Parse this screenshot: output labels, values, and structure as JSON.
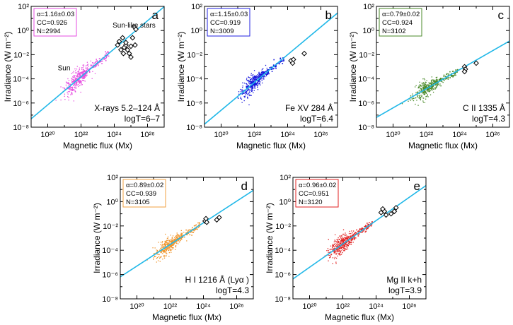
{
  "chart_data": [
    {
      "type": "scatter",
      "panel": "a",
      "xlabel": "Magnetic flux (Mx)",
      "ylabel": "Irradiance (W m⁻²)",
      "xscale": "log",
      "yscale": "log",
      "xlim_exp": [
        19,
        27
      ],
      "ylim_exp": [
        -8,
        2
      ],
      "xticks": [
        "10²⁰",
        "10²²",
        "10²⁴",
        "10²⁶"
      ],
      "yticks": [
        "10⁻⁸",
        "10⁻⁶",
        "10⁻⁴",
        "10⁻²",
        "10⁰",
        "10²"
      ],
      "stats": [
        "α=1.16±0.03",
        "CC=0.926",
        "N=2994"
      ],
      "box_color": "#e64ee0",
      "dot_color": "#e64ee0",
      "fit_color": "#21b8e8",
      "fit": {
        "slope": 1.16,
        "intercept": -29.35
      },
      "cloud": {
        "center_logx": 21.8,
        "center_logy": -3.9,
        "n": 340,
        "sx": 0.7,
        "sy": 0.8
      },
      "stars": [
        [
          24.3,
          -0.9
        ],
        [
          24.5,
          -0.6
        ],
        [
          24.6,
          -1.4
        ],
        [
          24.4,
          -1.6
        ],
        [
          24.7,
          -1.2
        ],
        [
          24.8,
          -1.6
        ],
        [
          25.0,
          -1.3
        ],
        [
          25.1,
          -0.6
        ],
        [
          25.2,
          0.3
        ],
        [
          25.3,
          0.1
        ],
        [
          24.9,
          -1.9
        ],
        [
          24.2,
          -1.2
        ],
        [
          24.55,
          -1.9
        ],
        [
          25.0,
          -2.2
        ],
        [
          24.7,
          -1.0
        ],
        [
          25.25,
          -1.2
        ]
      ],
      "annotation_lines": [
        "X-rays 5.2–124 Å",
        "logT=6–7"
      ],
      "labels": {
        "sun": "Sun",
        "stars": "Sun-like stars"
      }
    },
    {
      "type": "scatter",
      "panel": "b",
      "xlabel": "Magnetic flux (Mx)",
      "ylabel": "Irradiance (W m⁻²)",
      "xscale": "log",
      "yscale": "log",
      "xlim_exp": [
        19,
        27
      ],
      "ylim_exp": [
        -8,
        2
      ],
      "xticks": [
        "10²⁰",
        "10²²",
        "10²⁴",
        "10²⁶"
      ],
      "yticks": [
        "10⁻⁸",
        "10⁻⁶",
        "10⁻⁴",
        "10⁻²",
        "10⁰",
        "10²"
      ],
      "stats": [
        "α=1.15±0.03",
        "CC=0.919",
        "N=3009"
      ],
      "box_color": "#2222e0",
      "dot_color": "#1414dc",
      "fit_color": "#21b8e8",
      "fit": {
        "slope": 1.15,
        "intercept": -29.6
      },
      "cloud": {
        "center_logx": 21.9,
        "center_logy": -4.5,
        "n": 340,
        "sx": 0.7,
        "sy": 0.7
      },
      "stars": [
        [
          24.2,
          -2.5
        ],
        [
          24.35,
          -2.4
        ],
        [
          24.3,
          -2.7
        ],
        [
          25.0,
          -1.9
        ]
      ],
      "annotation_lines": [
        "Fe XV 284 Å",
        "logT=6.4"
      ]
    },
    {
      "type": "scatter",
      "panel": "c",
      "xlabel": "Magnetic flux (Mx)",
      "ylabel": "Irradiance (W m⁻²)",
      "xscale": "log",
      "yscale": "log",
      "xlim_exp": [
        19,
        27
      ],
      "ylim_exp": [
        -8,
        2
      ],
      "xticks": [
        "10²⁰",
        "10²²",
        "10²⁴",
        "10²⁶"
      ],
      "yticks": [
        "10⁻⁸",
        "10⁻⁶",
        "10⁻⁴",
        "10⁻²",
        "10⁰",
        "10²"
      ],
      "stats": [
        "α=0.79±0.02",
        "CC=0.924",
        "N=3102"
      ],
      "box_color": "#4a8a2a",
      "dot_color": "#4a8a2a",
      "fit_color": "#21b8e8",
      "fit": {
        "slope": 0.79,
        "intercept": -22.2
      },
      "cloud": {
        "center_logx": 22.0,
        "center_logy": -4.8,
        "n": 340,
        "sx": 0.7,
        "sy": 0.55
      },
      "stars": [
        [
          24.3,
          -3.0
        ],
        [
          24.35,
          -3.2
        ],
        [
          24.3,
          -3.4
        ],
        [
          25.0,
          -2.7
        ]
      ],
      "annotation_lines": [
        "C II 1335 Å",
        "logT=4.3"
      ]
    },
    {
      "type": "scatter",
      "panel": "d",
      "xlabel": "Magnetic flux (Mx)",
      "ylabel": "Irradiance (W m⁻²)",
      "xscale": "log",
      "yscale": "log",
      "xlim_exp": [
        19,
        27
      ],
      "ylim_exp": [
        -8,
        2
      ],
      "xticks": [
        "10²⁰",
        "10²²",
        "10²⁴",
        "10²⁶"
      ],
      "yticks": [
        "10⁻⁸",
        "10⁻⁶",
        "10⁻⁴",
        "10⁻²",
        "10⁰",
        "10²"
      ],
      "stats": [
        "α=0.89±0.02",
        "CC=0.939",
        "N=3105"
      ],
      "box_color": "#f0a040",
      "dot_color": "#f0962e",
      "fit_color": "#21b8e8",
      "fit": {
        "slope": 0.89,
        "intercept": -23.1
      },
      "cloud": {
        "center_logx": 21.9,
        "center_logy": -3.7,
        "n": 340,
        "sx": 0.7,
        "sy": 0.6
      },
      "stars": [
        [
          24.1,
          -1.6
        ],
        [
          24.15,
          -1.4
        ],
        [
          24.2,
          -1.7
        ],
        [
          24.8,
          -1.5
        ],
        [
          24.95,
          -1.3
        ]
      ],
      "annotation_lines": [
        "H I 1216 Å (Lyα )",
        "logT=4.3"
      ]
    },
    {
      "type": "scatter",
      "panel": "e",
      "xlabel": "Magnetic flux (Mx)",
      "ylabel": "Irradiance (W m⁻²)",
      "xscale": "log",
      "yscale": "log",
      "xlim_exp": [
        19,
        27
      ],
      "ylim_exp": [
        -8,
        2
      ],
      "xticks": [
        "10²⁰",
        "10²²",
        "10²⁴",
        "10²⁶"
      ],
      "yticks": [
        "10⁻⁸",
        "10⁻⁶",
        "10⁻⁴",
        "10⁻²",
        "10⁰",
        "10²"
      ],
      "stats": [
        "α=0.96±0.02",
        "CC=0.951",
        "N=3120"
      ],
      "box_color": "#e02020",
      "dot_color": "#e02020",
      "fit_color": "#21b8e8",
      "fit": {
        "slope": 0.96,
        "intercept": -24.6
      },
      "cloud": {
        "center_logx": 21.9,
        "center_logy": -3.6,
        "n": 340,
        "sx": 0.7,
        "sy": 0.7
      },
      "stars": [
        [
          24.3,
          -0.9
        ],
        [
          24.5,
          -0.8
        ],
        [
          24.6,
          -1.1
        ],
        [
          24.9,
          -1.0
        ],
        [
          25.1,
          -0.8
        ],
        [
          25.2,
          -0.5
        ],
        [
          24.4,
          -0.6
        ]
      ],
      "annotation_lines": [
        "Mg II k+h",
        "logT=3.9"
      ]
    }
  ]
}
